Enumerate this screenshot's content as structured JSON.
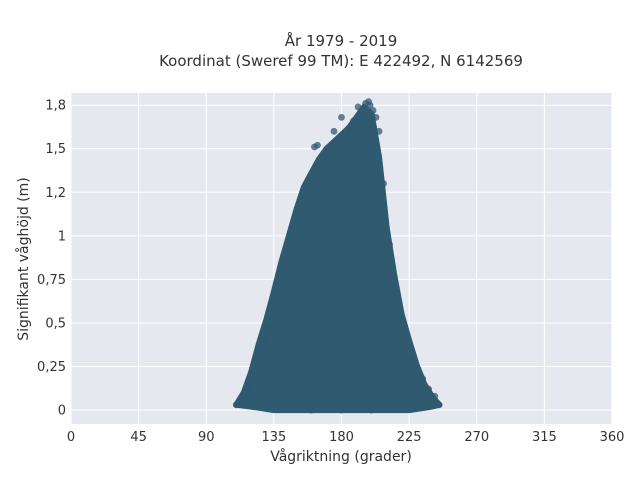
{
  "chart_data": {
    "type": "scatter",
    "title_line1": "År 1979 - 2019",
    "title_line2": "Koordinat (Sweref 99 TM): E 422492, N 6142569",
    "xlabel": "Vågriktning (grader)",
    "ylabel": "Signifikant våghöjd (m)",
    "xlim": [
      0,
      360
    ],
    "ylim": [
      -0.08,
      1.82
    ],
    "x_ticks": [
      0,
      45,
      90,
      135,
      180,
      225,
      270,
      315,
      360
    ],
    "x_tick_labels": [
      "0",
      "45",
      "90",
      "135",
      "180",
      "225",
      "270",
      "315",
      "360"
    ],
    "y_ticks": [
      0,
      0.25,
      0.5,
      0.75,
      1,
      1.25,
      1.5,
      1.75
    ],
    "y_tick_labels": [
      "0",
      "0,25",
      "0,5",
      "0,75",
      "1",
      "1,2",
      "1,5",
      "1,8"
    ],
    "grid": true,
    "point_color": "#2f5a70",
    "background_color": "#e6e8f0",
    "envelope": {
      "upper": [
        [
          110,
          0.03
        ],
        [
          115,
          0.1
        ],
        [
          120,
          0.22
        ],
        [
          125,
          0.38
        ],
        [
          130,
          0.52
        ],
        [
          135,
          0.68
        ],
        [
          140,
          0.85
        ],
        [
          145,
          1.0
        ],
        [
          150,
          1.15
        ],
        [
          155,
          1.28
        ],
        [
          160,
          1.36
        ],
        [
          165,
          1.44
        ],
        [
          170,
          1.5
        ],
        [
          175,
          1.54
        ],
        [
          180,
          1.58
        ],
        [
          185,
          1.62
        ],
        [
          190,
          1.68
        ],
        [
          195,
          1.74
        ],
        [
          200,
          1.7
        ],
        [
          205,
          1.45
        ],
        [
          210,
          1.05
        ],
        [
          215,
          0.78
        ],
        [
          220,
          0.55
        ],
        [
          225,
          0.4
        ],
        [
          230,
          0.26
        ],
        [
          235,
          0.15
        ],
        [
          240,
          0.08
        ],
        [
          245,
          0.03
        ]
      ],
      "lower": [
        [
          110,
          0.03
        ],
        [
          120,
          0.02
        ],
        [
          135,
          0.0
        ],
        [
          180,
          0.0
        ],
        [
          225,
          0.0
        ],
        [
          240,
          0.02
        ],
        [
          245,
          0.03
        ]
      ]
    },
    "outlier_points": [
      [
        110,
        0.03
      ],
      [
        113,
        0.05
      ],
      [
        116,
        0.08
      ],
      [
        119,
        0.12
      ],
      [
        122,
        0.2
      ],
      [
        126,
        0.26
      ],
      [
        128,
        0.4
      ],
      [
        131,
        0.48
      ],
      [
        245,
        0.03
      ],
      [
        242,
        0.08
      ],
      [
        238,
        0.12
      ],
      [
        234,
        0.18
      ],
      [
        230,
        0.24
      ],
      [
        227,
        0.3
      ],
      [
        180,
        0.0
      ],
      [
        200,
        0.0
      ],
      [
        160,
        0.0
      ],
      [
        205,
        1.6
      ],
      [
        208,
        1.3
      ],
      [
        212,
        0.95
      ]
    ],
    "peak_points": [
      [
        162,
        1.51
      ],
      [
        164,
        1.52
      ],
      [
        175,
        1.6
      ],
      [
        180,
        1.68
      ],
      [
        185,
        1.62
      ],
      [
        188,
        1.66
      ],
      [
        191,
        1.74
      ],
      [
        196,
        1.76
      ],
      [
        198,
        1.77
      ],
      [
        199,
        1.75
      ],
      [
        201,
        1.72
      ],
      [
        203,
        1.68
      ]
    ]
  }
}
